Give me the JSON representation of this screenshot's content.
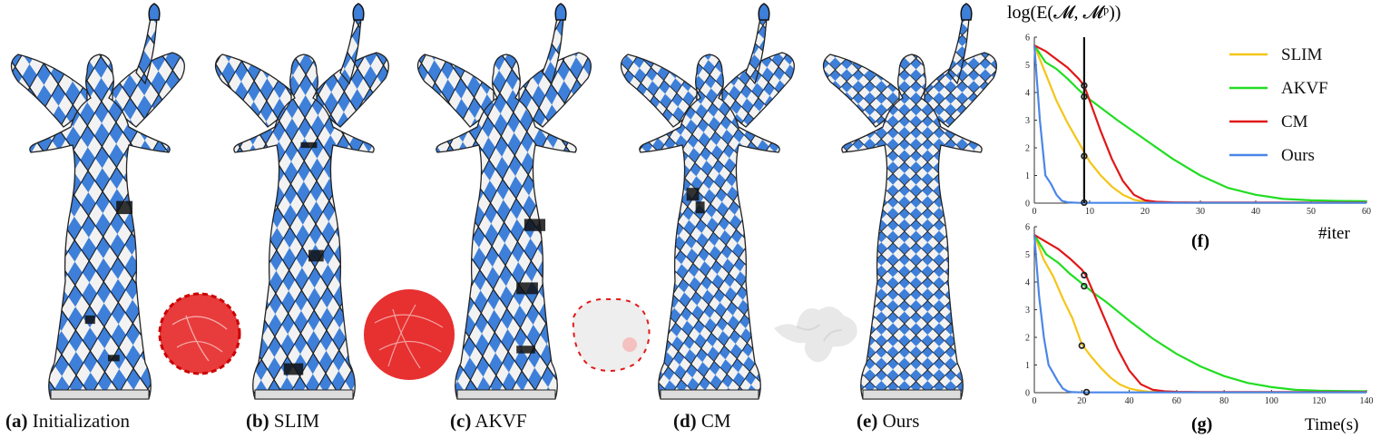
{
  "captions": [
    {
      "tag": "(a)",
      "text": "Initialization"
    },
    {
      "tag": "(b)",
      "text": "SLIM"
    },
    {
      "tag": "(c)",
      "text": "AKVF"
    },
    {
      "tag": "(d)",
      "text": "CM"
    },
    {
      "tag": "(e)",
      "text": "Ours"
    }
  ],
  "colors": {
    "SLIM": "#f5c518",
    "AKVF": "#22dd22",
    "CM": "#e01818",
    "Ours": "#4a86e8",
    "checker_blue": "#3d7fd9"
  },
  "chart_data": [
    {
      "type": "line",
      "panel_label": "(f)",
      "ylabel": "log(E(𝓜, 𝓜ᵖ))",
      "xlabel": "#iter",
      "xlim": [
        0,
        60
      ],
      "ylim": [
        0,
        6
      ],
      "xticks": [
        0,
        10,
        20,
        30,
        40,
        50,
        60
      ],
      "yticks": [
        0,
        1,
        2,
        3,
        4,
        5,
        6
      ],
      "vline_x": 9,
      "legend": {
        "placement": "top-right",
        "entries": [
          "SLIM",
          "AKVF",
          "CM",
          "Ours"
        ]
      },
      "series": [
        {
          "name": "SLIM",
          "x": [
            0,
            2,
            4,
            6,
            8,
            10,
            12,
            14,
            16,
            18,
            20,
            25,
            30,
            60
          ],
          "y": [
            5.7,
            4.7,
            3.7,
            2.9,
            2.2,
            1.5,
            1.0,
            0.6,
            0.3,
            0.12,
            0.05,
            0.02,
            0.01,
            0.01
          ]
        },
        {
          "name": "AKVF",
          "x": [
            0,
            2,
            4,
            6,
            8,
            10,
            15,
            20,
            25,
            30,
            35,
            40,
            45,
            50,
            55,
            60
          ],
          "y": [
            5.7,
            5.1,
            4.85,
            4.5,
            4.1,
            3.75,
            3.0,
            2.3,
            1.6,
            1.0,
            0.55,
            0.3,
            0.15,
            0.1,
            0.08,
            0.07
          ]
        },
        {
          "name": "CM",
          "x": [
            0,
            2,
            4,
            6,
            8,
            9,
            10,
            12,
            14,
            16,
            18,
            20,
            22,
            25,
            30,
            60
          ],
          "y": [
            5.7,
            5.5,
            5.2,
            4.9,
            4.5,
            4.25,
            3.7,
            2.6,
            1.6,
            0.8,
            0.3,
            0.1,
            0.05,
            0.03,
            0.02,
            0.02
          ]
        },
        {
          "name": "Ours",
          "x": [
            0,
            1,
            2,
            3,
            4,
            5,
            6,
            8,
            10,
            60
          ],
          "y": [
            5.7,
            3.0,
            1.0,
            0.7,
            0.3,
            0.08,
            0.03,
            0.01,
            0.01,
            0.01
          ]
        }
      ],
      "markers": [
        {
          "series": "CM",
          "x": 9,
          "y": 4.25
        },
        {
          "series": "AKVF",
          "x": 9,
          "y": 3.85
        },
        {
          "series": "SLIM",
          "x": 9,
          "y": 1.7
        },
        {
          "series": "Ours",
          "x": 9,
          "y": 0.02
        }
      ]
    },
    {
      "type": "line",
      "panel_label": "(g)",
      "xlabel": "Time(s)",
      "xlim": [
        0,
        140
      ],
      "ylim": [
        0,
        6
      ],
      "xticks": [
        0,
        20,
        40,
        60,
        80,
        100,
        120,
        140
      ],
      "yticks": [
        0,
        1,
        2,
        3,
        4,
        5,
        6
      ],
      "series": [
        {
          "name": "SLIM",
          "x": [
            0,
            4,
            8,
            12,
            16,
            20,
            24,
            28,
            32,
            36,
            40,
            44,
            48,
            55,
            70,
            140
          ],
          "y": [
            5.7,
            4.8,
            4.2,
            3.4,
            2.7,
            1.75,
            1.3,
            0.9,
            0.55,
            0.3,
            0.15,
            0.08,
            0.04,
            0.02,
            0.01,
            0.01
          ]
        },
        {
          "name": "AKVF",
          "x": [
            0,
            5,
            10,
            15,
            20,
            25,
            30,
            40,
            50,
            60,
            70,
            80,
            90,
            100,
            110,
            120,
            130,
            140
          ],
          "y": [
            5.7,
            5.0,
            4.7,
            4.3,
            3.95,
            3.6,
            3.3,
            2.6,
            1.95,
            1.4,
            0.95,
            0.6,
            0.35,
            0.2,
            0.1,
            0.07,
            0.06,
            0.05
          ]
        },
        {
          "name": "CM",
          "x": [
            0,
            5,
            10,
            15,
            20,
            22,
            25,
            30,
            35,
            40,
            45,
            50,
            55,
            60,
            70,
            140
          ],
          "y": [
            5.7,
            5.45,
            5.2,
            4.85,
            4.45,
            4.2,
            3.6,
            2.6,
            1.6,
            0.8,
            0.3,
            0.1,
            0.05,
            0.03,
            0.02,
            0.02
          ]
        },
        {
          "name": "Ours",
          "x": [
            0,
            2,
            4,
            6,
            8,
            10,
            12,
            14,
            16,
            20,
            140
          ],
          "y": [
            5.7,
            3.5,
            2.0,
            1.0,
            0.7,
            0.4,
            0.15,
            0.05,
            0.02,
            0.01,
            0.01
          ]
        }
      ],
      "markers": [
        {
          "series": "CM",
          "x": 21,
          "y": 4.25
        },
        {
          "series": "AKVF",
          "x": 21,
          "y": 3.85
        },
        {
          "series": "SLIM",
          "x": 20,
          "y": 1.7
        },
        {
          "series": "Ours",
          "x": 22,
          "y": 0.02
        }
      ]
    }
  ]
}
